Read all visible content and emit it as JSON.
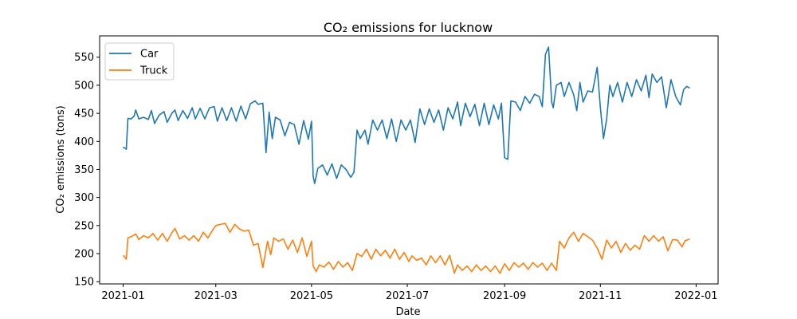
{
  "chart_data": {
    "type": "line",
    "title": "CO₂ emissions for lucknow",
    "xlabel": "Date",
    "ylabel": "CO₂ emissions (tons)",
    "x_range": [
      "2020-12-17",
      "2022-01-15"
    ],
    "ylim": [
      146,
      588
    ],
    "x_ticks": [
      {
        "date": "2021-01-01",
        "label": "2021-01"
      },
      {
        "date": "2021-03-01",
        "label": "2021-03"
      },
      {
        "date": "2021-05-01",
        "label": "2021-05"
      },
      {
        "date": "2021-07-01",
        "label": "2021-07"
      },
      {
        "date": "2021-09-01",
        "label": "2021-09"
      },
      {
        "date": "2021-11-01",
        "label": "2021-11"
      },
      {
        "date": "2022-01-01",
        "label": "2022-01"
      }
    ],
    "y_ticks": [
      150,
      200,
      250,
      300,
      350,
      400,
      450,
      500,
      550
    ],
    "grid": false,
    "legend": {
      "position": "top-left"
    },
    "series": [
      {
        "name": "Car",
        "color": "#1f77b4",
        "points": [
          [
            "2021-01-01",
            390
          ],
          [
            "2021-01-03",
            386
          ],
          [
            "2021-01-04",
            441
          ],
          [
            "2021-01-06",
            440
          ],
          [
            "2021-01-08",
            445
          ],
          [
            "2021-01-09",
            456
          ],
          [
            "2021-01-11",
            440
          ],
          [
            "2021-01-14",
            443
          ],
          [
            "2021-01-17",
            439
          ],
          [
            "2021-01-19",
            455
          ],
          [
            "2021-01-21",
            432
          ],
          [
            "2021-01-24",
            447
          ],
          [
            "2021-01-27",
            453
          ],
          [
            "2021-01-29",
            434
          ],
          [
            "2021-02-01",
            450
          ],
          [
            "2021-02-03",
            456
          ],
          [
            "2021-02-05",
            437
          ],
          [
            "2021-02-08",
            455
          ],
          [
            "2021-02-11",
            441
          ],
          [
            "2021-02-14",
            460
          ],
          [
            "2021-02-16",
            440
          ],
          [
            "2021-02-19",
            459
          ],
          [
            "2021-02-22",
            440
          ],
          [
            "2021-02-25",
            460
          ],
          [
            "2021-02-28",
            462
          ],
          [
            "2021-03-02",
            436
          ],
          [
            "2021-03-05",
            460
          ],
          [
            "2021-03-08",
            437
          ],
          [
            "2021-03-11",
            460
          ],
          [
            "2021-03-14",
            436
          ],
          [
            "2021-03-17",
            463
          ],
          [
            "2021-03-20",
            440
          ],
          [
            "2021-03-23",
            467
          ],
          [
            "2021-03-26",
            472
          ],
          [
            "2021-03-28",
            466
          ],
          [
            "2021-03-31",
            468
          ],
          [
            "2021-04-02",
            380
          ],
          [
            "2021-04-04",
            452
          ],
          [
            "2021-04-06",
            405
          ],
          [
            "2021-04-08",
            443
          ],
          [
            "2021-04-11",
            438
          ],
          [
            "2021-04-14",
            410
          ],
          [
            "2021-04-17",
            434
          ],
          [
            "2021-04-20",
            430
          ],
          [
            "2021-04-23",
            395
          ],
          [
            "2021-04-26",
            437
          ],
          [
            "2021-04-29",
            404
          ],
          [
            "2021-05-01",
            436
          ],
          [
            "2021-05-02",
            338
          ],
          [
            "2021-05-03",
            325
          ],
          [
            "2021-05-05",
            352
          ],
          [
            "2021-05-08",
            358
          ],
          [
            "2021-05-11",
            340
          ],
          [
            "2021-05-14",
            360
          ],
          [
            "2021-05-17",
            334
          ],
          [
            "2021-05-20",
            358
          ],
          [
            "2021-05-23",
            350
          ],
          [
            "2021-05-26",
            336
          ],
          [
            "2021-05-28",
            345
          ],
          [
            "2021-05-30",
            420
          ],
          [
            "2021-06-01",
            405
          ],
          [
            "2021-06-04",
            420
          ],
          [
            "2021-06-06",
            395
          ],
          [
            "2021-06-09",
            438
          ],
          [
            "2021-06-12",
            420
          ],
          [
            "2021-06-15",
            438
          ],
          [
            "2021-06-18",
            405
          ],
          [
            "2021-06-21",
            440
          ],
          [
            "2021-06-24",
            400
          ],
          [
            "2021-06-27",
            438
          ],
          [
            "2021-06-30",
            420
          ],
          [
            "2021-07-03",
            438
          ],
          [
            "2021-07-06",
            398
          ],
          [
            "2021-07-09",
            458
          ],
          [
            "2021-07-12",
            430
          ],
          [
            "2021-07-15",
            458
          ],
          [
            "2021-07-18",
            434
          ],
          [
            "2021-07-21",
            456
          ],
          [
            "2021-07-24",
            420
          ],
          [
            "2021-07-27",
            460
          ],
          [
            "2021-07-30",
            440
          ],
          [
            "2021-08-02",
            470
          ],
          [
            "2021-08-04",
            428
          ],
          [
            "2021-08-07",
            468
          ],
          [
            "2021-08-10",
            444
          ],
          [
            "2021-08-13",
            466
          ],
          [
            "2021-08-16",
            428
          ],
          [
            "2021-08-19",
            468
          ],
          [
            "2021-08-22",
            430
          ],
          [
            "2021-08-25",
            465
          ],
          [
            "2021-08-28",
            440
          ],
          [
            "2021-08-30",
            468
          ],
          [
            "2021-09-01",
            371
          ],
          [
            "2021-09-03",
            368
          ],
          [
            "2021-09-05",
            472
          ],
          [
            "2021-09-08",
            470
          ],
          [
            "2021-09-11",
            455
          ],
          [
            "2021-09-14",
            480
          ],
          [
            "2021-09-17",
            468
          ],
          [
            "2021-09-20",
            484
          ],
          [
            "2021-09-23",
            480
          ],
          [
            "2021-09-25",
            462
          ],
          [
            "2021-09-27",
            555
          ],
          [
            "2021-09-29",
            568
          ],
          [
            "2021-10-01",
            470
          ],
          [
            "2021-10-02",
            460
          ],
          [
            "2021-10-04",
            500
          ],
          [
            "2021-10-07",
            505
          ],
          [
            "2021-10-09",
            480
          ],
          [
            "2021-10-12",
            505
          ],
          [
            "2021-10-15",
            483
          ],
          [
            "2021-10-17",
            455
          ],
          [
            "2021-10-19",
            505
          ],
          [
            "2021-10-21",
            470
          ],
          [
            "2021-10-24",
            490
          ],
          [
            "2021-10-27",
            488
          ],
          [
            "2021-10-30",
            532
          ],
          [
            "2021-11-01",
            460
          ],
          [
            "2021-11-03",
            405
          ],
          [
            "2021-11-05",
            440
          ],
          [
            "2021-11-07",
            500
          ],
          [
            "2021-11-09",
            480
          ],
          [
            "2021-11-12",
            505
          ],
          [
            "2021-11-15",
            470
          ],
          [
            "2021-11-18",
            505
          ],
          [
            "2021-11-21",
            480
          ],
          [
            "2021-11-24",
            510
          ],
          [
            "2021-11-27",
            490
          ],
          [
            "2021-11-30",
            518
          ],
          [
            "2021-12-02",
            478
          ],
          [
            "2021-12-04",
            520
          ],
          [
            "2021-12-07",
            505
          ],
          [
            "2021-12-10",
            515
          ],
          [
            "2021-12-13",
            460
          ],
          [
            "2021-12-16",
            510
          ],
          [
            "2021-12-19",
            480
          ],
          [
            "2021-12-22",
            465
          ],
          [
            "2021-12-24",
            492
          ],
          [
            "2021-12-26",
            498
          ],
          [
            "2021-12-28",
            495
          ]
        ]
      },
      {
        "name": "Truck",
        "color": "#ff7f0e",
        "points": [
          [
            "2021-01-01",
            197
          ],
          [
            "2021-01-03",
            190
          ],
          [
            "2021-01-04",
            228
          ],
          [
            "2021-01-06",
            230
          ],
          [
            "2021-01-09",
            235
          ],
          [
            "2021-01-11",
            225
          ],
          [
            "2021-01-14",
            232
          ],
          [
            "2021-01-17",
            228
          ],
          [
            "2021-01-20",
            236
          ],
          [
            "2021-01-23",
            224
          ],
          [
            "2021-01-26",
            236
          ],
          [
            "2021-01-29",
            222
          ],
          [
            "2021-02-01",
            237
          ],
          [
            "2021-02-03",
            245
          ],
          [
            "2021-02-06",
            226
          ],
          [
            "2021-02-09",
            232
          ],
          [
            "2021-02-12",
            224
          ],
          [
            "2021-02-15",
            232
          ],
          [
            "2021-02-18",
            222
          ],
          [
            "2021-02-21",
            238
          ],
          [
            "2021-02-24",
            228
          ],
          [
            "2021-02-27",
            242
          ],
          [
            "2021-03-01",
            250
          ],
          [
            "2021-03-04",
            252
          ],
          [
            "2021-03-07",
            254
          ],
          [
            "2021-03-10",
            238
          ],
          [
            "2021-03-13",
            252
          ],
          [
            "2021-03-16",
            244
          ],
          [
            "2021-03-19",
            240
          ],
          [
            "2021-03-22",
            242
          ],
          [
            "2021-03-25",
            215
          ],
          [
            "2021-03-28",
            218
          ],
          [
            "2021-03-31",
            175
          ],
          [
            "2021-04-03",
            222
          ],
          [
            "2021-04-05",
            198
          ],
          [
            "2021-04-07",
            228
          ],
          [
            "2021-04-10",
            222
          ],
          [
            "2021-04-13",
            226
          ],
          [
            "2021-04-16",
            208
          ],
          [
            "2021-04-19",
            224
          ],
          [
            "2021-04-22",
            202
          ],
          [
            "2021-04-25",
            228
          ],
          [
            "2021-04-28",
            195
          ],
          [
            "2021-05-01",
            222
          ],
          [
            "2021-05-02",
            178
          ],
          [
            "2021-05-04",
            168
          ],
          [
            "2021-05-06",
            180
          ],
          [
            "2021-05-09",
            176
          ],
          [
            "2021-05-12",
            185
          ],
          [
            "2021-05-15",
            172
          ],
          [
            "2021-05-18",
            186
          ],
          [
            "2021-05-21",
            176
          ],
          [
            "2021-05-24",
            184
          ],
          [
            "2021-05-27",
            170
          ],
          [
            "2021-05-30",
            200
          ],
          [
            "2021-06-02",
            195
          ],
          [
            "2021-06-05",
            208
          ],
          [
            "2021-06-08",
            190
          ],
          [
            "2021-06-11",
            208
          ],
          [
            "2021-06-14",
            196
          ],
          [
            "2021-06-17",
            206
          ],
          [
            "2021-06-20",
            192
          ],
          [
            "2021-06-23",
            208
          ],
          [
            "2021-06-26",
            190
          ],
          [
            "2021-06-29",
            202
          ],
          [
            "2021-07-02",
            186
          ],
          [
            "2021-07-04",
            196
          ],
          [
            "2021-07-07",
            188
          ],
          [
            "2021-07-10",
            192
          ],
          [
            "2021-07-13",
            180
          ],
          [
            "2021-07-16",
            196
          ],
          [
            "2021-07-19",
            184
          ],
          [
            "2021-07-22",
            196
          ],
          [
            "2021-07-25",
            180
          ],
          [
            "2021-07-28",
            197
          ],
          [
            "2021-07-31",
            165
          ],
          [
            "2021-08-02",
            180
          ],
          [
            "2021-08-05",
            170
          ],
          [
            "2021-08-08",
            178
          ],
          [
            "2021-08-11",
            168
          ],
          [
            "2021-08-14",
            180
          ],
          [
            "2021-08-17",
            170
          ],
          [
            "2021-08-20",
            178
          ],
          [
            "2021-08-23",
            168
          ],
          [
            "2021-08-26",
            178
          ],
          [
            "2021-08-29",
            165
          ],
          [
            "2021-09-01",
            182
          ],
          [
            "2021-09-04",
            170
          ],
          [
            "2021-09-07",
            184
          ],
          [
            "2021-09-10",
            176
          ],
          [
            "2021-09-13",
            183
          ],
          [
            "2021-09-16",
            172
          ],
          [
            "2021-09-19",
            184
          ],
          [
            "2021-09-22",
            176
          ],
          [
            "2021-09-25",
            183
          ],
          [
            "2021-09-28",
            170
          ],
          [
            "2021-10-01",
            183
          ],
          [
            "2021-10-04",
            170
          ],
          [
            "2021-10-06",
            222
          ],
          [
            "2021-10-09",
            210
          ],
          [
            "2021-10-12",
            228
          ],
          [
            "2021-10-15",
            238
          ],
          [
            "2021-10-18",
            222
          ],
          [
            "2021-10-21",
            236
          ],
          [
            "2021-10-24",
            230
          ],
          [
            "2021-10-27",
            224
          ],
          [
            "2021-10-30",
            210
          ],
          [
            "2021-11-02",
            190
          ],
          [
            "2021-11-05",
            224
          ],
          [
            "2021-11-08",
            210
          ],
          [
            "2021-11-11",
            222
          ],
          [
            "2021-11-14",
            202
          ],
          [
            "2021-11-17",
            218
          ],
          [
            "2021-11-20",
            206
          ],
          [
            "2021-11-23",
            215
          ],
          [
            "2021-11-26",
            208
          ],
          [
            "2021-11-29",
            232
          ],
          [
            "2021-12-02",
            222
          ],
          [
            "2021-12-05",
            232
          ],
          [
            "2021-12-08",
            222
          ],
          [
            "2021-12-11",
            230
          ],
          [
            "2021-12-14",
            205
          ],
          [
            "2021-12-17",
            225
          ],
          [
            "2021-12-20",
            224
          ],
          [
            "2021-12-23",
            212
          ],
          [
            "2021-12-25",
            223
          ],
          [
            "2021-12-28",
            226
          ]
        ]
      }
    ]
  }
}
